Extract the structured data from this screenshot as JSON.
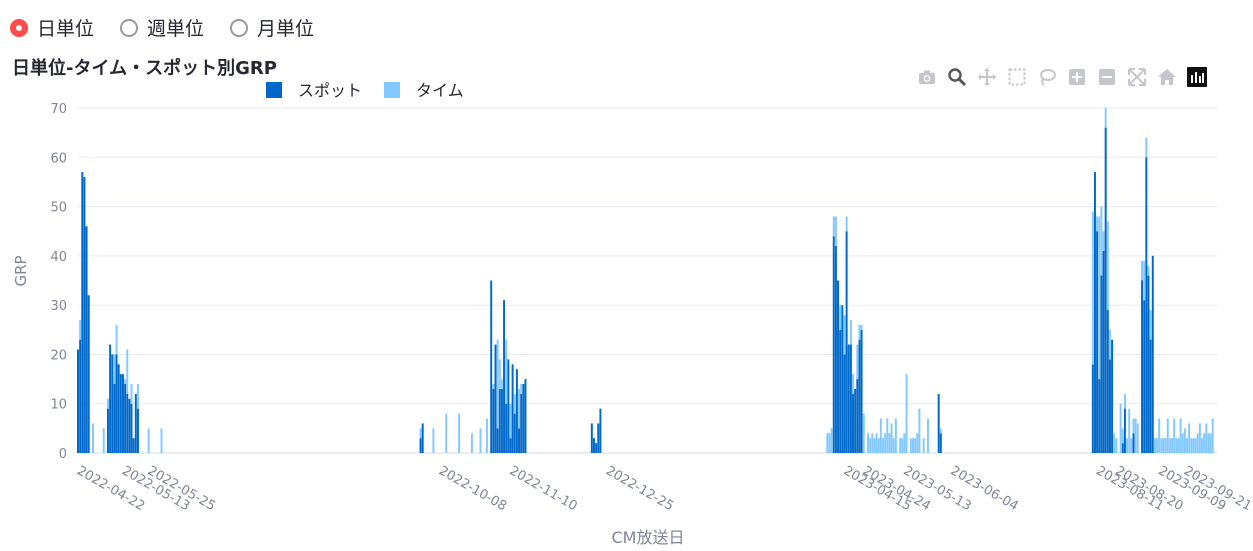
{
  "radio": {
    "options": [
      {
        "label": "日単位",
        "selected": true
      },
      {
        "label": "週単位",
        "selected": false
      },
      {
        "label": "月単位",
        "selected": false
      }
    ]
  },
  "colors": {
    "accent": "#ff4b4b",
    "spot": "#0068c9",
    "time": "#83c9ff",
    "grid": "#e6eaf1",
    "axis_text": "#808495"
  },
  "modebar_icons": [
    "camera-icon",
    "zoom-icon",
    "pan-icon",
    "box-select-icon",
    "lasso-icon",
    "zoom-in-icon",
    "zoom-out-icon",
    "autoscale-icon",
    "reset-axes-icon",
    "plotly-logo-icon"
  ],
  "chart_data": {
    "type": "bar",
    "barmode": "stack",
    "title": "日単位-タイム・スポット別GRP",
    "xlabel": "CM放送日",
    "ylabel": "GRP",
    "ylim": [
      0,
      70
    ],
    "yticks": [
      0,
      10,
      20,
      30,
      40,
      50,
      60,
      70
    ],
    "xlim": [
      "2022-04-22",
      "2023-10-06"
    ],
    "xticks": [
      "2022-04-22",
      "2022-05-13",
      "2022-05-25",
      "2022-10-08",
      "2022-11-10",
      "2022-12-25",
      "2023-04-15",
      "2023-04-24",
      "2023-05-13",
      "2023-06-04",
      "2023-08-11",
      "2023-08-20",
      "2023-09-09",
      "2023-09-21"
    ],
    "grid": true,
    "legend": {
      "position": "top",
      "orientation": "horizontal"
    },
    "series": [
      {
        "name": "スポット",
        "points": [
          [
            "2022-04-22",
            21
          ],
          [
            "2022-04-23",
            23
          ],
          [
            "2022-04-24",
            57
          ],
          [
            "2022-04-25",
            56
          ],
          [
            "2022-04-26",
            46
          ],
          [
            "2022-04-27",
            32
          ],
          [
            "2022-05-06",
            9
          ],
          [
            "2022-05-07",
            22
          ],
          [
            "2022-05-08",
            20
          ],
          [
            "2022-05-09",
            14
          ],
          [
            "2022-05-10",
            20
          ],
          [
            "2022-05-11",
            18
          ],
          [
            "2022-05-12",
            16
          ],
          [
            "2022-05-13",
            16
          ],
          [
            "2022-05-14",
            14
          ],
          [
            "2022-05-15",
            12
          ],
          [
            "2022-05-16",
            11
          ],
          [
            "2022-05-17",
            10
          ],
          [
            "2022-05-18",
            3
          ],
          [
            "2022-05-19",
            12
          ],
          [
            "2022-05-20",
            9
          ],
          [
            "2022-09-29",
            3
          ],
          [
            "2022-09-30",
            6
          ],
          [
            "2022-11-01",
            35
          ],
          [
            "2022-11-02",
            13
          ],
          [
            "2022-11-03",
            22
          ],
          [
            "2022-11-04",
            5
          ],
          [
            "2022-11-05",
            13
          ],
          [
            "2022-11-06",
            13
          ],
          [
            "2022-11-07",
            31
          ],
          [
            "2022-11-08",
            10
          ],
          [
            "2022-11-09",
            19
          ],
          [
            "2022-11-10",
            3
          ],
          [
            "2022-11-11",
            18
          ],
          [
            "2022-11-12",
            8
          ],
          [
            "2022-11-13",
            17
          ],
          [
            "2022-11-14",
            5
          ],
          [
            "2022-11-15",
            12
          ],
          [
            "2022-11-16",
            14
          ],
          [
            "2022-11-17",
            15
          ],
          [
            "2022-12-18",
            6
          ],
          [
            "2022-12-19",
            3
          ],
          [
            "2022-12-20",
            2
          ],
          [
            "2022-12-21",
            6
          ],
          [
            "2022-12-22",
            9
          ],
          [
            "2023-04-10",
            44
          ],
          [
            "2023-04-11",
            42
          ],
          [
            "2023-04-12",
            35
          ],
          [
            "2023-04-13",
            25
          ],
          [
            "2023-04-14",
            30
          ],
          [
            "2023-04-15",
            20
          ],
          [
            "2023-04-16",
            45
          ],
          [
            "2023-04-17",
            22
          ],
          [
            "2023-04-18",
            22
          ],
          [
            "2023-04-19",
            12
          ],
          [
            "2023-04-20",
            13
          ],
          [
            "2023-04-21",
            15
          ],
          [
            "2023-04-22",
            23
          ],
          [
            "2023-04-23",
            25
          ],
          [
            "2023-05-29",
            12
          ],
          [
            "2023-05-30",
            4
          ],
          [
            "2023-08-09",
            18
          ],
          [
            "2023-08-10",
            57
          ],
          [
            "2023-08-11",
            45
          ],
          [
            "2023-08-12",
            15
          ],
          [
            "2023-08-13",
            36
          ],
          [
            "2023-08-14",
            41
          ],
          [
            "2023-08-15",
            66
          ],
          [
            "2023-08-16",
            29
          ],
          [
            "2023-08-17",
            19
          ],
          [
            "2023-08-18",
            23
          ],
          [
            "2023-08-23",
            2
          ],
          [
            "2023-08-24",
            9
          ],
          [
            "2023-08-28",
            4
          ],
          [
            "2023-09-01",
            35
          ],
          [
            "2023-09-02",
            31
          ],
          [
            "2023-09-03",
            60
          ],
          [
            "2023-09-04",
            36
          ],
          [
            "2023-09-05",
            23
          ],
          [
            "2023-09-06",
            40
          ]
        ]
      },
      {
        "name": "タイム",
        "points": [
          [
            "2022-04-22",
            0
          ],
          [
            "2022-04-23",
            4
          ],
          [
            "2022-04-24",
            0
          ],
          [
            "2022-04-25",
            0
          ],
          [
            "2022-04-26",
            0
          ],
          [
            "2022-04-27",
            0
          ],
          [
            "2022-04-29",
            6
          ],
          [
            "2022-05-04",
            5
          ],
          [
            "2022-05-06",
            2
          ],
          [
            "2022-05-07",
            0
          ],
          [
            "2022-05-08",
            0
          ],
          [
            "2022-05-09",
            6
          ],
          [
            "2022-05-10",
            6
          ],
          [
            "2022-05-11",
            0
          ],
          [
            "2022-05-12",
            0
          ],
          [
            "2022-05-13",
            0
          ],
          [
            "2022-05-14",
            1
          ],
          [
            "2022-05-15",
            9
          ],
          [
            "2022-05-16",
            0
          ],
          [
            "2022-05-17",
            4
          ],
          [
            "2022-05-18",
            0
          ],
          [
            "2022-05-19",
            0
          ],
          [
            "2022-05-20",
            5
          ],
          [
            "2022-05-25",
            5
          ],
          [
            "2022-05-31",
            5
          ],
          [
            "2022-09-29",
            2
          ],
          [
            "2022-10-05",
            5
          ],
          [
            "2022-10-11",
            8
          ],
          [
            "2022-10-17",
            8
          ],
          [
            "2022-10-23",
            4
          ],
          [
            "2022-10-27",
            5
          ],
          [
            "2022-10-30",
            7
          ],
          [
            "2022-11-05",
            6
          ],
          [
            "2022-11-01",
            0
          ],
          [
            "2022-11-02",
            1
          ],
          [
            "2022-11-03",
            0
          ],
          [
            "2022-11-04",
            18
          ],
          [
            "2022-11-05",
            0
          ],
          [
            "2022-11-06",
            2
          ],
          [
            "2022-11-07",
            0
          ],
          [
            "2022-11-08",
            13
          ],
          [
            "2022-11-09",
            0
          ],
          [
            "2022-11-10",
            7
          ],
          [
            "2022-11-11",
            0
          ],
          [
            "2022-11-12",
            4
          ],
          [
            "2022-11-13",
            0
          ],
          [
            "2022-11-14",
            8
          ],
          [
            "2022-11-15",
            2
          ],
          [
            "2023-04-07",
            4
          ],
          [
            "2023-04-08",
            4
          ],
          [
            "2023-04-09",
            5
          ],
          [
            "2023-04-10",
            4
          ],
          [
            "2023-04-11",
            6
          ],
          [
            "2023-04-12",
            0
          ],
          [
            "2023-04-13",
            5
          ],
          [
            "2023-04-14",
            0
          ],
          [
            "2023-04-15",
            8
          ],
          [
            "2023-04-16",
            3
          ],
          [
            "2023-04-18",
            5
          ],
          [
            "2023-04-19",
            4
          ],
          [
            "2023-04-20",
            0
          ],
          [
            "2023-04-21",
            7
          ],
          [
            "2023-04-22",
            3
          ],
          [
            "2023-04-23",
            1
          ],
          [
            "2023-04-24",
            8
          ],
          [
            "2023-04-26",
            4
          ],
          [
            "2023-04-27",
            3
          ],
          [
            "2023-04-28",
            4
          ],
          [
            "2023-04-29",
            3
          ],
          [
            "2023-04-30",
            4
          ],
          [
            "2023-05-01",
            3
          ],
          [
            "2023-05-02",
            7
          ],
          [
            "2023-05-03",
            3
          ],
          [
            "2023-05-04",
            4
          ],
          [
            "2023-05-05",
            7
          ],
          [
            "2023-05-06",
            4
          ],
          [
            "2023-05-07",
            6
          ],
          [
            "2023-05-08",
            3
          ],
          [
            "2023-05-09",
            7
          ],
          [
            "2023-05-11",
            3
          ],
          [
            "2023-05-12",
            3
          ],
          [
            "2023-05-13",
            4
          ],
          [
            "2023-05-14",
            16
          ],
          [
            "2023-05-16",
            3
          ],
          [
            "2023-05-17",
            3
          ],
          [
            "2023-05-18",
            3
          ],
          [
            "2023-05-19",
            4
          ],
          [
            "2023-05-20",
            9
          ],
          [
            "2023-05-22",
            3
          ],
          [
            "2023-05-24",
            7
          ],
          [
            "2023-05-29",
            0
          ],
          [
            "2023-05-30",
            1
          ],
          [
            "2023-08-09",
            31
          ],
          [
            "2023-08-10",
            0
          ],
          [
            "2023-08-11",
            3
          ],
          [
            "2023-08-12",
            33
          ],
          [
            "2023-08-13",
            14
          ],
          [
            "2023-08-14",
            4
          ],
          [
            "2023-08-15",
            4
          ],
          [
            "2023-08-16",
            18
          ],
          [
            "2023-08-17",
            6
          ],
          [
            "2023-08-18",
            0
          ],
          [
            "2023-08-19",
            4
          ],
          [
            "2023-08-20",
            3
          ],
          [
            "2023-08-22",
            10
          ],
          [
            "2023-08-23",
            3
          ],
          [
            "2023-08-24",
            3
          ],
          [
            "2023-08-25",
            3
          ],
          [
            "2023-08-26",
            9
          ],
          [
            "2023-08-27",
            3
          ],
          [
            "2023-08-28",
            3
          ],
          [
            "2023-08-29",
            7
          ],
          [
            "2023-08-30",
            6
          ],
          [
            "2023-09-01",
            4
          ],
          [
            "2023-09-02",
            8
          ],
          [
            "2023-09-03",
            4
          ],
          [
            "2023-09-04",
            2
          ],
          [
            "2023-09-05",
            6
          ],
          [
            "2023-09-06",
            0
          ],
          [
            "2023-09-07",
            3
          ],
          [
            "2023-09-08",
            3
          ],
          [
            "2023-09-09",
            7
          ],
          [
            "2023-09-10",
            3
          ],
          [
            "2023-09-11",
            3
          ],
          [
            "2023-09-12",
            3
          ],
          [
            "2023-09-13",
            7
          ],
          [
            "2023-09-14",
            3
          ],
          [
            "2023-09-15",
            3
          ],
          [
            "2023-09-16",
            7
          ],
          [
            "2023-09-17",
            3
          ],
          [
            "2023-09-18",
            3
          ],
          [
            "2023-09-19",
            7
          ],
          [
            "2023-09-20",
            4
          ],
          [
            "2023-09-21",
            5
          ],
          [
            "2023-09-22",
            3
          ],
          [
            "2023-09-23",
            6
          ],
          [
            "2023-09-24",
            3
          ],
          [
            "2023-09-25",
            3
          ],
          [
            "2023-09-26",
            3
          ],
          [
            "2023-09-27",
            4
          ],
          [
            "2023-09-28",
            6
          ],
          [
            "2023-09-29",
            3
          ],
          [
            "2023-09-30",
            4
          ],
          [
            "2023-10-01",
            6
          ],
          [
            "2023-10-02",
            4
          ],
          [
            "2023-10-03",
            4
          ],
          [
            "2023-10-04",
            7
          ]
        ]
      }
    ]
  }
}
